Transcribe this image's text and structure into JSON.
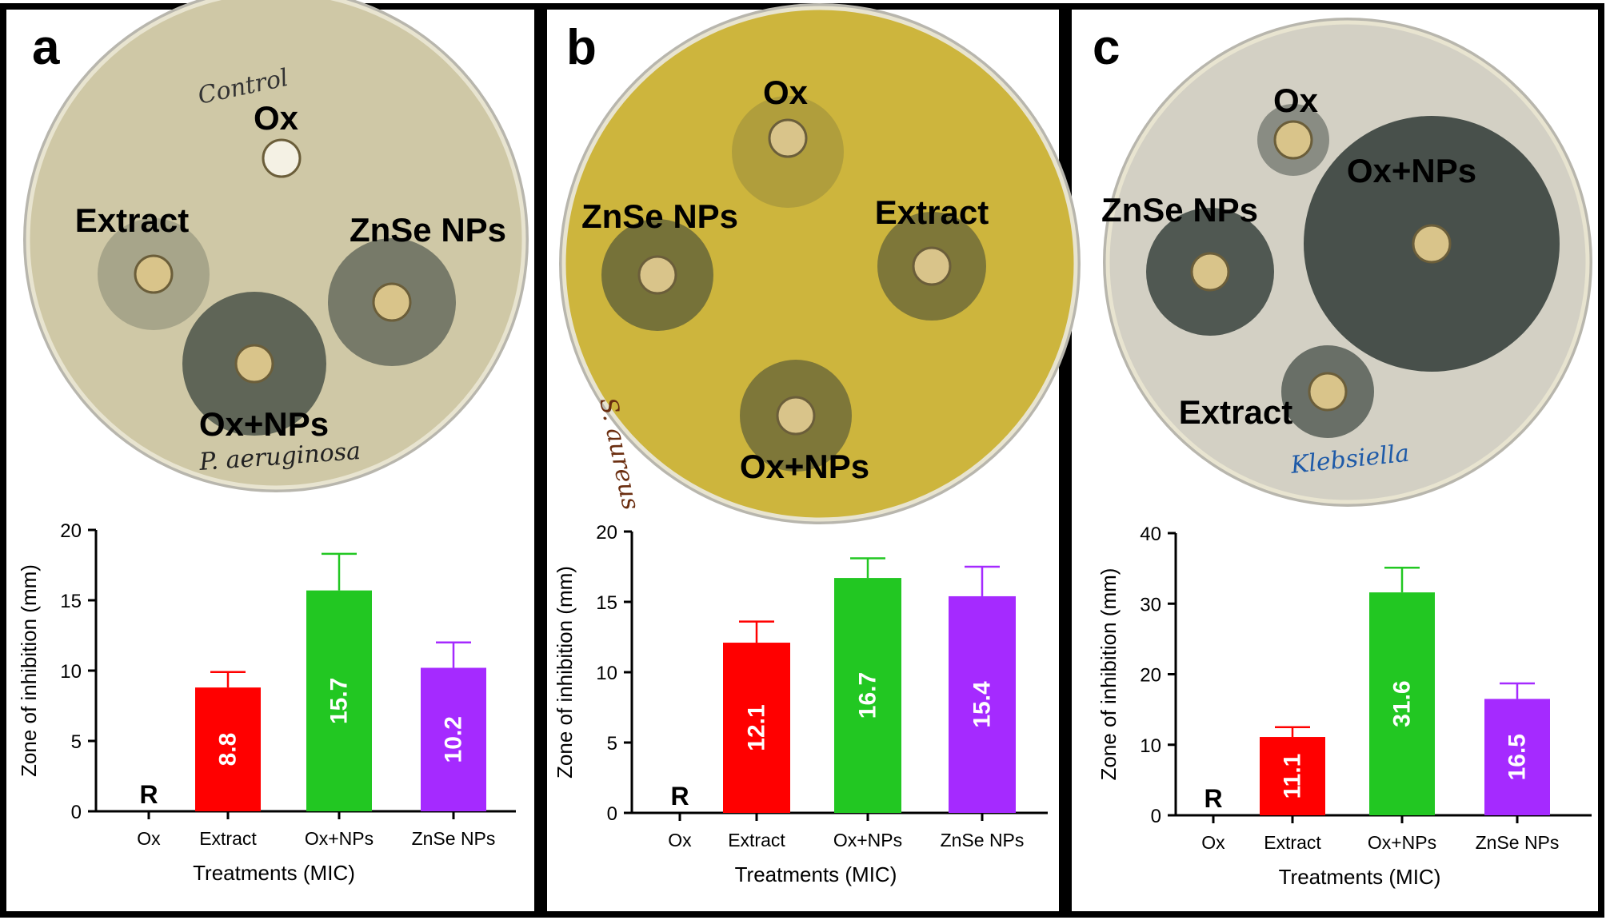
{
  "colors": {
    "extract": "#ff0000",
    "ox_nps": "#22c722",
    "znse_nps": "#a52aff",
    "frame": "#000000"
  },
  "panels": [
    {
      "letter": "a",
      "plate_color": "#cfc8a6",
      "plate_labels": [
        "Ox",
        "Extract",
        "ZnSe NPs",
        "Ox+NPs"
      ],
      "handwriting": [
        "Control",
        "P. aeruginosa"
      ]
    },
    {
      "letter": "b",
      "plate_color": "#cdb53d",
      "plate_labels": [
        "Ox",
        "ZnSe NPs",
        "Extract",
        "Ox+NPs"
      ],
      "handwriting": [
        "S. aureus"
      ]
    },
    {
      "letter": "c",
      "plate_color": "#d3d0c4",
      "plate_labels": [
        "Ox",
        "Ox+NPs",
        "ZnSe NPs",
        "Extract"
      ],
      "handwriting": [
        "Klebsiella"
      ]
    }
  ],
  "chart_data": [
    {
      "type": "bar",
      "panel": "a",
      "categories": [
        "Ox",
        "Extract",
        "Ox+NPs",
        "ZnSe NPs"
      ],
      "values": [
        0,
        8.8,
        15.7,
        10.2
      ],
      "errors": [
        0,
        1.1,
        2.6,
        1.8
      ],
      "bar_labels": [
        "R",
        "8.8",
        "15.7",
        "10.2"
      ],
      "xlabel": "Treatments (MIC)",
      "ylabel": "Zone of inhibition (mm)",
      "ylim": [
        0,
        20
      ],
      "yticks": [
        0,
        5,
        10,
        15,
        20
      ],
      "grid": false
    },
    {
      "type": "bar",
      "panel": "b",
      "categories": [
        "Ox",
        "Extract",
        "Ox+NPs",
        "ZnSe NPs"
      ],
      "values": [
        0,
        12.1,
        16.7,
        15.4
      ],
      "errors": [
        0,
        1.5,
        1.4,
        2.1
      ],
      "bar_labels": [
        "R",
        "12.1",
        "16.7",
        "15.4"
      ],
      "xlabel": "Treatments (MIC)",
      "ylabel": "Zone of inhibition (mm)",
      "ylim": [
        0,
        20
      ],
      "yticks": [
        0,
        5,
        10,
        15,
        20
      ],
      "grid": false
    },
    {
      "type": "bar",
      "panel": "c",
      "categories": [
        "Ox",
        "Extract",
        "Ox+NPs",
        "ZnSe NPs"
      ],
      "values": [
        0,
        11.1,
        31.6,
        16.5
      ],
      "errors": [
        0,
        1.4,
        3.5,
        2.2
      ],
      "bar_labels": [
        "R",
        "11.1",
        "31.6",
        "16.5"
      ],
      "xlabel": "Treatments (MIC)",
      "ylabel": "Zone of inhibition (mm)",
      "ylim": [
        0,
        40
      ],
      "yticks": [
        0,
        10,
        20,
        30,
        40
      ],
      "grid": false
    }
  ]
}
